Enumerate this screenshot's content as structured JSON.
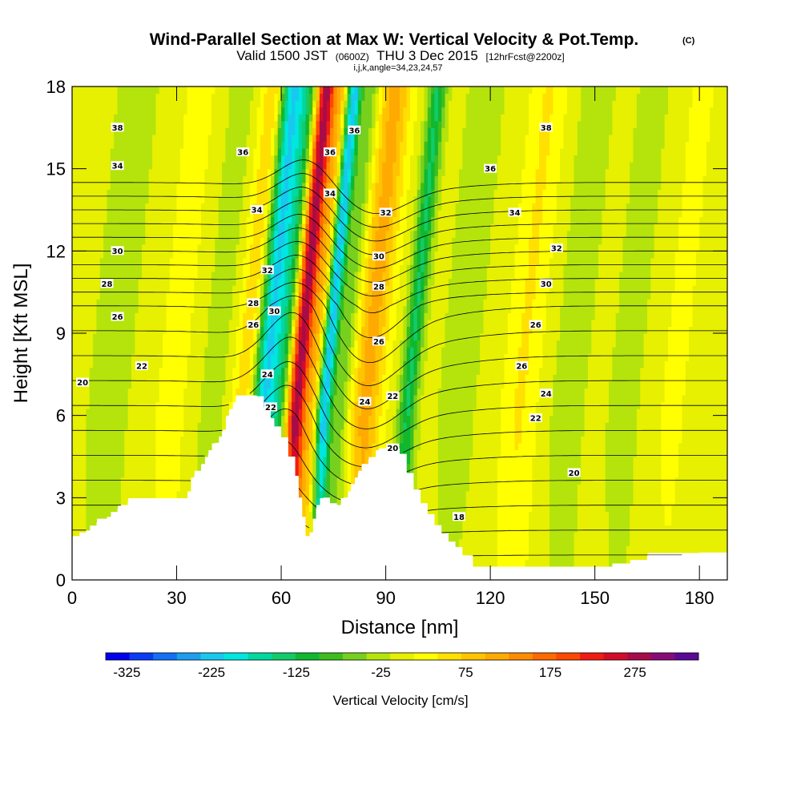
{
  "chart_data": {
    "type": "heatmap",
    "title": "Wind-Parallel Section at Max W: Vertical Velocity & Pot.Temp.",
    "title_mark": "(C)",
    "subtitle_parts": [
      "Valid 1500 JST",
      "(0600Z)",
      "THU 3 Dec 2015",
      "[12hrFcst@2200z]"
    ],
    "subtitle2": "i,j,k,angle=34,23,24,57",
    "xlabel": "Distance [nm]",
    "ylabel": "Height [Kft MSL]",
    "xlim": [
      0,
      188
    ],
    "ylim": [
      0,
      18
    ],
    "xticks": [
      0,
      30,
      60,
      90,
      120,
      150,
      180
    ],
    "yticks": [
      0,
      3,
      6,
      9,
      12,
      15,
      18
    ],
    "colorbar": {
      "label": "Vertical Velocity [cm/s]",
      "tick_values": [
        -325,
        -225,
        -125,
        -25,
        75,
        175,
        275
      ],
      "tick_labels": [
        "-325",
        "-225",
        "-125",
        "-25",
        "75",
        "175",
        "275"
      ],
      "vmin": -350,
      "vmax": 350,
      "colors": [
        "#0000ee",
        "#0a3cf5",
        "#1470f5",
        "#1e9ef0",
        "#18c8ee",
        "#00e6e0",
        "#00d8a0",
        "#12cc6a",
        "#10b830",
        "#3cbe1e",
        "#78d01e",
        "#b4e40c",
        "#e6f000",
        "#ffff00",
        "#ffe000",
        "#ffc400",
        "#ffaa00",
        "#ff8c00",
        "#ff6a00",
        "#ff4800",
        "#f01c14",
        "#d20c28",
        "#a80c48",
        "#880c78",
        "#5a0a96"
      ]
    },
    "vertical_velocity_bands": [
      {
        "x": 50,
        "w": 4,
        "amp": 90
      },
      {
        "x": 54,
        "w": 3.5,
        "amp": -220
      },
      {
        "x": 59,
        "w": 3.5,
        "amp": -120
      },
      {
        "x": 64,
        "w": 2.8,
        "amp": 300
      },
      {
        "x": 69,
        "w": 2.2,
        "amp": 90
      },
      {
        "x": 72,
        "w": 2.2,
        "amp": -240
      },
      {
        "x": 77,
        "w": 2.5,
        "amp": -60
      },
      {
        "x": 84,
        "w": 4.5,
        "amp": 110
      },
      {
        "x": 96,
        "w": 2.5,
        "amp": -130
      },
      {
        "x": 110,
        "w": 7,
        "amp": -25
      },
      {
        "x": 128,
        "w": 5,
        "amp": 45
      },
      {
        "x": 142,
        "w": 5,
        "amp": -35
      },
      {
        "x": 158,
        "w": 5,
        "amp": -30
      },
      {
        "x": 172,
        "w": 5,
        "amp": 20
      },
      {
        "x": 10,
        "w": 6,
        "amp": -35
      },
      {
        "x": 28,
        "w": 4,
        "amp": 35
      },
      {
        "x": 40,
        "w": 4,
        "amp": -30
      }
    ],
    "terrain": {
      "x": [
        0,
        2,
        4,
        7,
        10,
        13,
        16,
        20,
        24,
        28,
        32,
        35,
        37,
        39,
        41,
        43,
        45,
        47,
        50,
        53,
        55,
        57,
        58,
        60,
        62,
        64,
        65,
        66,
        67,
        68,
        70,
        72,
        74,
        76,
        78,
        80,
        82,
        85,
        88,
        90,
        92,
        94,
        96,
        98,
        100,
        102,
        104,
        106,
        108,
        110,
        112,
        115,
        120,
        125,
        130,
        135,
        140,
        145,
        150,
        152,
        155,
        160,
        165,
        170,
        175,
        180,
        188
      ],
      "y": [
        1.6,
        1.6,
        1.8,
        2.1,
        2.3,
        2.6,
        2.9,
        2.9,
        2.9,
        2.9,
        2.9,
        3.8,
        4.2,
        4.6,
        5.0,
        5.4,
        6.2,
        6.7,
        6.7,
        6.7,
        6.3,
        5.9,
        5.6,
        5.2,
        4.5,
        3.8,
        3.0,
        2.3,
        1.6,
        1.6,
        2.6,
        3.0,
        2.8,
        2.6,
        3.0,
        3.5,
        3.9,
        4.4,
        4.8,
        4.8,
        4.8,
        4.6,
        3.9,
        3.3,
        2.8,
        2.4,
        2.0,
        1.7,
        1.4,
        1.2,
        0.9,
        0.4,
        0.4,
        0.4,
        0.4,
        0.4,
        0.4,
        0.4,
        0.4,
        0.4,
        0.6,
        0.6,
        0.9,
        0.9,
        0.9,
        1.0,
        1.0
      ]
    },
    "contour_levels": [
      18,
      19,
      20,
      21,
      22,
      23,
      24,
      25,
      26,
      27,
      28,
      29,
      30,
      31,
      32,
      33,
      34,
      35,
      36,
      37,
      38
    ],
    "contour_labels": [
      {
        "text": "38",
        "x": 13,
        "y": 16.5
      },
      {
        "text": "36",
        "x": 49,
        "y": 15.6
      },
      {
        "text": "36",
        "x": 74,
        "y": 15.6
      },
      {
        "text": "36",
        "x": 81,
        "y": 16.4
      },
      {
        "text": "38",
        "x": 136,
        "y": 16.5
      },
      {
        "text": "34",
        "x": 13,
        "y": 15.1
      },
      {
        "text": "36",
        "x": 120,
        "y": 15.0
      },
      {
        "text": "34",
        "x": 74,
        "y": 14.1
      },
      {
        "text": "34",
        "x": 53,
        "y": 13.5
      },
      {
        "text": "34",
        "x": 127,
        "y": 13.4
      },
      {
        "text": "32",
        "x": 90,
        "y": 13.4
      },
      {
        "text": "30",
        "x": 13,
        "y": 12.0
      },
      {
        "text": "32",
        "x": 139,
        "y": 12.1
      },
      {
        "text": "30",
        "x": 88,
        "y": 11.8
      },
      {
        "text": "32",
        "x": 56,
        "y": 11.3
      },
      {
        "text": "28",
        "x": 10,
        "y": 10.8
      },
      {
        "text": "30",
        "x": 136,
        "y": 10.8
      },
      {
        "text": "28",
        "x": 88,
        "y": 10.7
      },
      {
        "text": "28",
        "x": 52,
        "y": 10.1
      },
      {
        "text": "30",
        "x": 58,
        "y": 9.8
      },
      {
        "text": "26",
        "x": 13,
        "y": 9.6
      },
      {
        "text": "26",
        "x": 52,
        "y": 9.3
      },
      {
        "text": "26",
        "x": 133,
        "y": 9.3
      },
      {
        "text": "26",
        "x": 88,
        "y": 8.7
      },
      {
        "text": "22",
        "x": 20,
        "y": 7.8
      },
      {
        "text": "26",
        "x": 129,
        "y": 7.8
      },
      {
        "text": "24",
        "x": 56,
        "y": 7.5
      },
      {
        "text": "20",
        "x": 3,
        "y": 7.2
      },
      {
        "text": "24",
        "x": 136,
        "y": 6.8
      },
      {
        "text": "22",
        "x": 92,
        "y": 6.7
      },
      {
        "text": "24",
        "x": 84,
        "y": 6.5
      },
      {
        "text": "22",
        "x": 57,
        "y": 6.3
      },
      {
        "text": "22",
        "x": 133,
        "y": 5.9
      },
      {
        "text": "20",
        "x": 92,
        "y": 4.8
      },
      {
        "text": "20",
        "x": 144,
        "y": 3.9
      },
      {
        "text": "18",
        "x": 111,
        "y": 2.3
      }
    ]
  }
}
